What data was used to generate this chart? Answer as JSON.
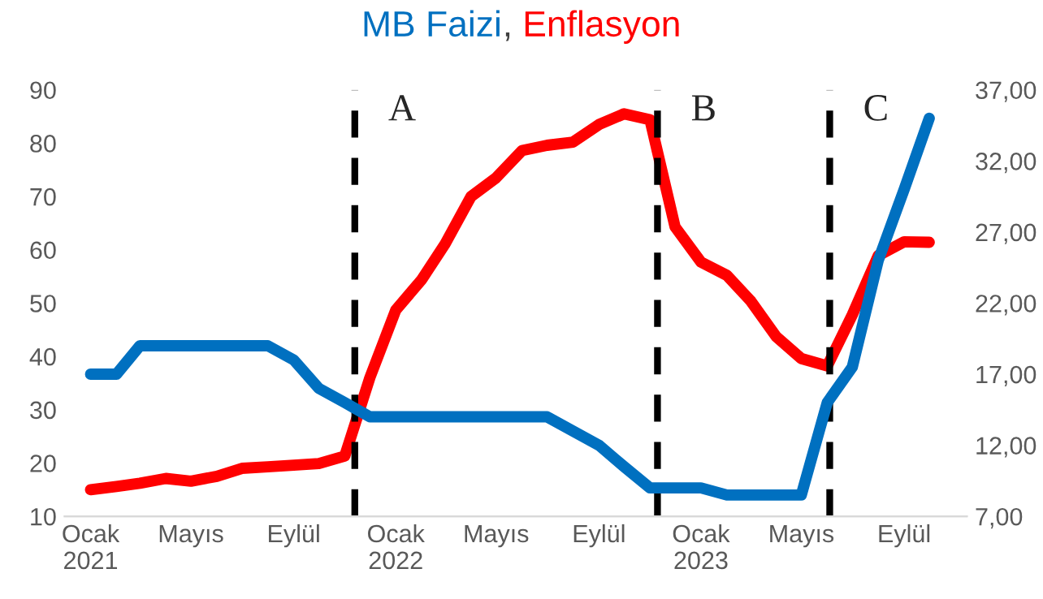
{
  "chart_data": {
    "type": "line",
    "x": [
      "2021-01",
      "2021-02",
      "2021-03",
      "2021-04",
      "2021-05",
      "2021-06",
      "2021-07",
      "2021-08",
      "2021-09",
      "2021-10",
      "2021-11",
      "2021-12",
      "2022-01",
      "2022-02",
      "2022-03",
      "2022-04",
      "2022-05",
      "2022-06",
      "2022-07",
      "2022-08",
      "2022-09",
      "2022-10",
      "2022-11",
      "2022-12",
      "2023-01",
      "2023-02",
      "2023-03",
      "2023-04",
      "2023-05",
      "2023-06",
      "2023-07",
      "2023-08",
      "2023-09",
      "2023-10"
    ],
    "series": [
      {
        "name": "MB Faizi",
        "color": "#0070c0",
        "axis": "y2",
        "values": [
          17,
          17,
          19,
          19,
          19,
          19,
          19,
          19,
          18,
          16,
          15,
          14,
          14,
          14,
          14,
          14,
          14,
          14,
          14,
          13,
          12,
          10.5,
          9,
          9,
          9,
          8.5,
          8.5,
          8.5,
          8.5,
          15,
          17.5,
          25,
          30,
          35
        ]
      },
      {
        "name": "Enflasyon",
        "color": "#ff0000",
        "values": [
          15,
          15.6,
          16.2,
          17.1,
          16.6,
          17.5,
          19,
          19.3,
          19.6,
          19.9,
          21.3,
          36,
          48.7,
          54.4,
          61.1,
          70,
          73.5,
          78.6,
          79.6,
          80.2,
          83.5,
          85.5,
          84.4,
          64.3,
          57.7,
          55.2,
          50.5,
          43.7,
          39.6,
          38.2,
          47.8,
          58.9,
          61.5,
          61.4
        ]
      }
    ],
    "xlim": [
      "2020-12-01",
      "2023-11-15"
    ],
    "xticks": [
      {
        "value": "2021-01",
        "label": "Ocak\n2021"
      },
      {
        "value": "2021-05",
        "label": "Mayıs"
      },
      {
        "value": "2021-09",
        "label": "Eylül"
      },
      {
        "value": "2022-01",
        "label": "Ocak\n2022"
      },
      {
        "value": "2022-05",
        "label": "Mayıs"
      },
      {
        "value": "2022-09",
        "label": "Eylül"
      },
      {
        "value": "2023-01",
        "label": "Ocak\n2023"
      },
      {
        "value": "2023-05",
        "label": "Mayıs"
      },
      {
        "value": "2023-09",
        "label": "Eylül"
      }
    ],
    "ylim": [
      10,
      90
    ],
    "yticks": [
      10,
      20,
      30,
      40,
      50,
      60,
      70,
      80,
      90
    ],
    "y2lim": [
      7,
      37
    ],
    "y2ticks": [
      {
        "value": 7,
        "label": "7,00"
      },
      {
        "value": 12,
        "label": "12,00"
      },
      {
        "value": 17,
        "label": "17,00"
      },
      {
        "value": 22,
        "label": "22,00"
      },
      {
        "value": 27,
        "label": "27,00"
      },
      {
        "value": 32,
        "label": "32,00"
      },
      {
        "value": 37,
        "label": "37,00"
      }
    ],
    "ref_lines": [
      {
        "axis": "x",
        "value": "2021-11-13",
        "label": "A",
        "color": "#000000",
        "line_style": "dashed"
      },
      {
        "axis": "x",
        "value": "2022-11-10",
        "label": "B",
        "color": "#000000",
        "line_style": "dashed"
      },
      {
        "axis": "x",
        "value": "2023-06-04",
        "label": "C",
        "color": "#000000",
        "line_style": "dashed"
      }
    ],
    "annotations": [
      ","
    ],
    "legend": "top",
    "grid": false,
    "marker": "none",
    "line_style": "solid"
  }
}
